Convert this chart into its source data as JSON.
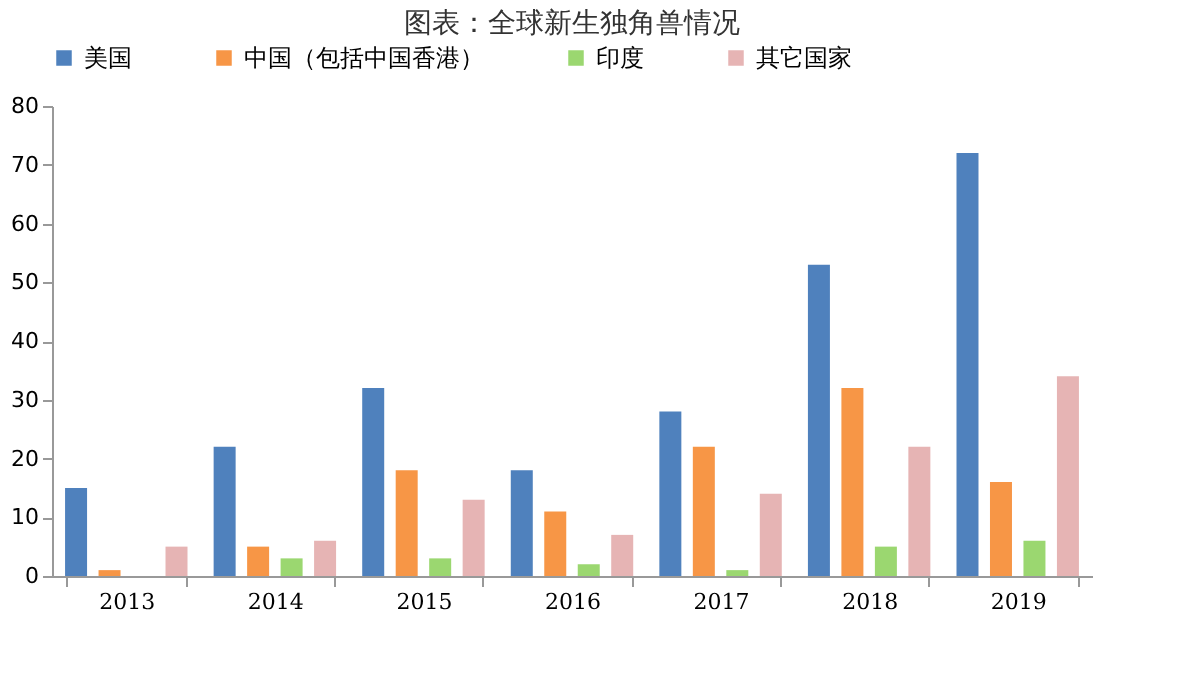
{
  "chart_data": {
    "type": "bar",
    "title": "图表：全球新生独角兽情况",
    "categories": [
      "2013",
      "2014",
      "2015",
      "2016",
      "2017",
      "2018",
      "2019"
    ],
    "series": [
      {
        "name": "美国",
        "color": "#4f81bd",
        "values": [
          15,
          22,
          32,
          18,
          28,
          53,
          72
        ]
      },
      {
        "name": "中国（包括中国香港）",
        "color": "#f79646",
        "values": [
          1,
          5,
          18,
          11,
          22,
          32,
          16
        ]
      },
      {
        "name": "印度",
        "color": "#9bd770",
        "values": [
          null,
          3,
          3,
          2,
          1,
          5,
          6
        ]
      },
      {
        "name": "其它国家",
        "color": "#e6b4b4",
        "values": [
          5,
          6,
          13,
          7,
          14,
          22,
          34
        ]
      }
    ],
    "ylim": [
      0,
      80
    ],
    "yticks": [
      0,
      10,
      20,
      30,
      40,
      50,
      60,
      70,
      80
    ],
    "grid": false,
    "legend": "top"
  }
}
